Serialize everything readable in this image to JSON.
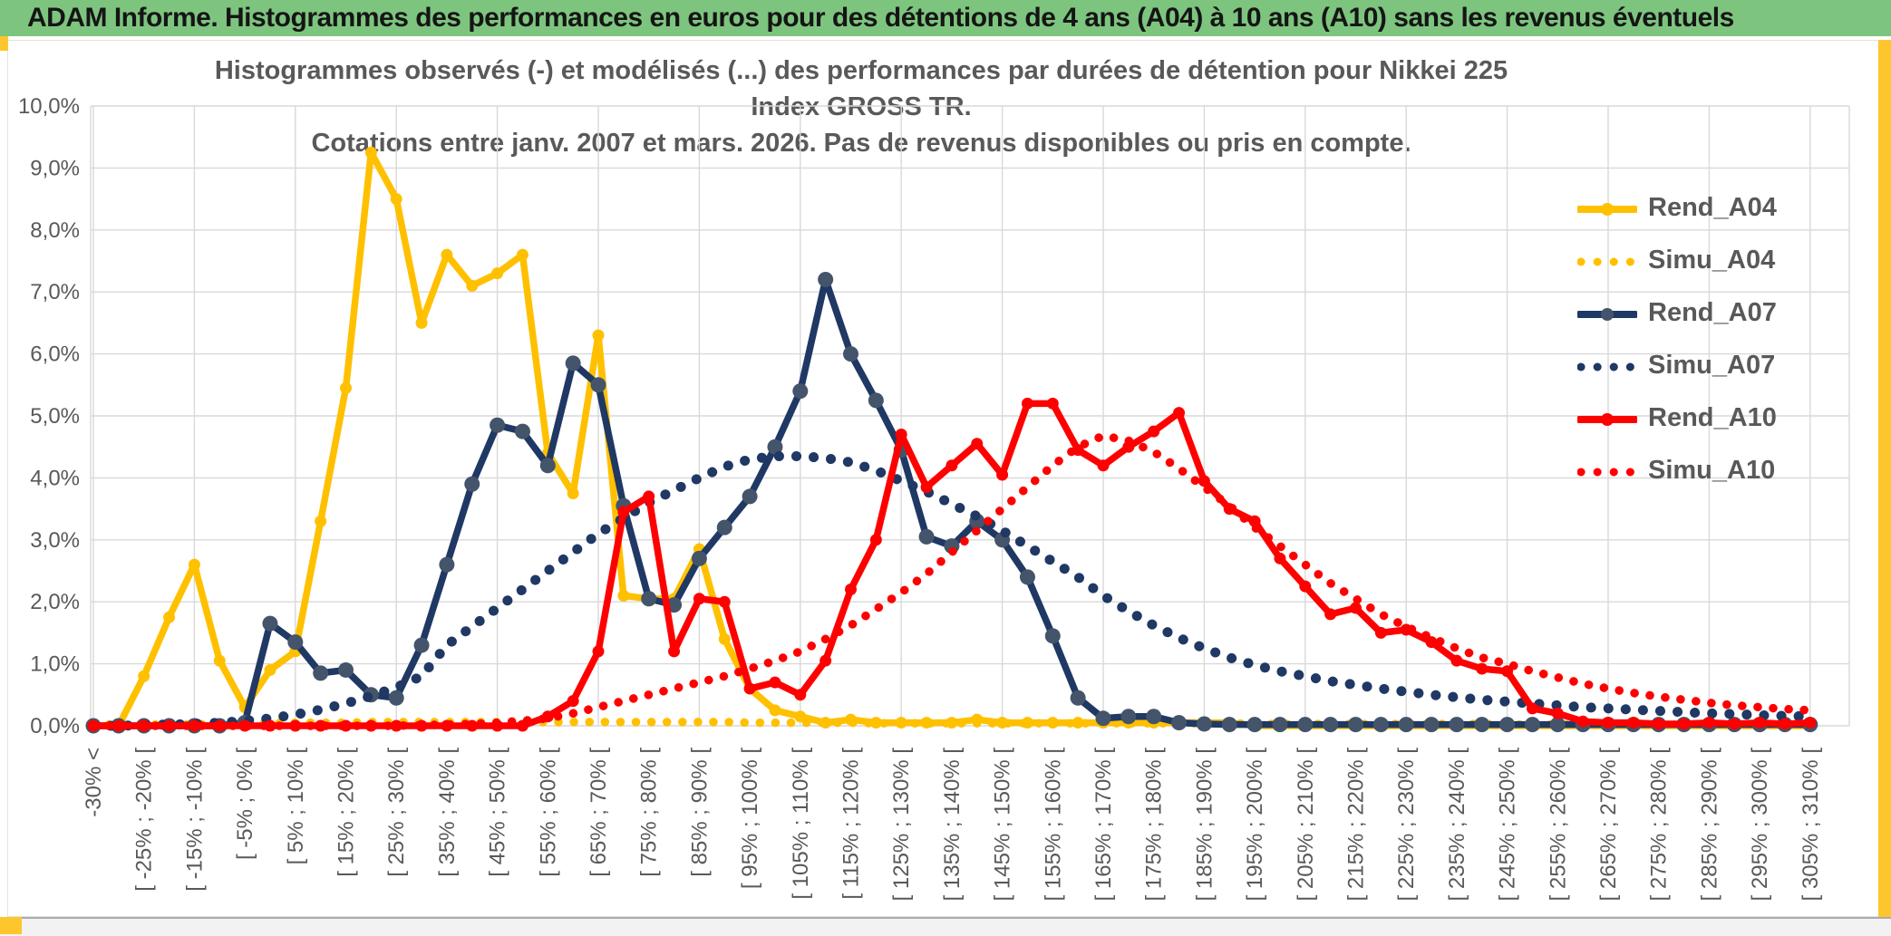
{
  "header": {
    "title": "ADAM Informe. Histogrammes des performances en euros pour des détentions de 4 ans (A04) à 10 ans (A10) sans les revenus éventuels"
  },
  "chart_data": {
    "type": "line",
    "title_line1": "Histogrammes observés (-) et modélisés (...) des performances par durées de détention pour Nikkei 225 Index GROSS TR.",
    "title_line2": "Cotations entre janv. 2007 et mars. 2026. Pas de revenus disponibles ou pris en compte.",
    "ylabel": "",
    "xlabel": "",
    "ylim": [
      0,
      10
    ],
    "y_tick_labels": [
      "10,0%",
      "9,0%",
      "8,0%",
      "7,0%",
      "6,0%",
      "5,0%",
      "4,0%",
      "3,0%",
      "2,0%",
      "1,0%",
      "0,0%"
    ],
    "n_bins": 69,
    "bins_per_tick_label": 2,
    "x_tick_labels": [
      "-30% <",
      "[ -25% ; -20% [",
      "[ -15% ; -10% [",
      "[ -5% ; 0% [",
      "[ 5% ; 10% [",
      "[ 15% ; 20% [",
      "[ 25% ; 30% [",
      "[ 35% ; 40% [",
      "[ 45% ; 50% [",
      "[ 55% ; 60% [",
      "[ 65% ; 70% [",
      "[ 75% ; 80% [",
      "[ 85% ; 90% [",
      "[ 95% ; 100% [",
      "[ 105% ; 110% [",
      "[ 115% ; 120% [",
      "[ 125% ; 130% [",
      "[ 135% ; 140% [",
      "[ 145% ; 150% [",
      "[ 155% ; 160% [",
      "[ 165% ; 170% [",
      "[ 175% ; 180% [",
      "[ 185% ; 190% [",
      "[ 195% ; 200% [",
      "[ 205% ; 210% [",
      "[ 215% ; 220% [",
      "[ 225% ; 230% [",
      "[ 235% ; 240% [",
      "[ 245% ; 250% [",
      "[ 255% ; 260% [",
      "[ 265% ; 270% [",
      "[ 275% ; 280% [",
      "[ 285% ; 290% [",
      "[ 295% ; 300% [",
      "[ 305% ; 310% ["
    ],
    "grid_color": "#d9d9d9",
    "legend_position": "right",
    "series": [
      {
        "name": "Rend_A04",
        "style": "solid",
        "color": "#FFC000",
        "marker_color": "#FFC000",
        "values": [
          0,
          0,
          0.8,
          1.75,
          2.6,
          1.05,
          0.3,
          0.9,
          1.2,
          3.3,
          5.45,
          9.25,
          8.5,
          6.5,
          7.6,
          7.1,
          7.3,
          7.6,
          4.4,
          3.75,
          6.3,
          2.1,
          2.05,
          2.05,
          2.85,
          1.4,
          0.6,
          0.25,
          0.15,
          0.05,
          0.1,
          0.05,
          0.05,
          0.05,
          0.05,
          0.1,
          0.05,
          0.05,
          0.05,
          0.05,
          0.05,
          0.05,
          0.05,
          0.05,
          0.05,
          0.05,
          0,
          0,
          0,
          0,
          0,
          0,
          0,
          0,
          0,
          0,
          0,
          0,
          0,
          0,
          0,
          0,
          0,
          0,
          0,
          0,
          0,
          0,
          0
        ]
      },
      {
        "name": "Simu_A04",
        "style": "dotted",
        "color": "#FFC000",
        "marker_color": "#FFC000",
        "values": [
          0.02,
          0.02,
          0.02,
          0.02,
          0.02,
          0.03,
          0.04,
          0.04,
          0.05,
          0.05,
          0.05,
          0.06,
          0.06,
          0.06,
          0.06,
          0.06,
          0.06,
          0.06,
          0.06,
          0.06,
          0.06,
          0.06,
          0.06,
          0.06,
          0.06,
          0.06,
          0.05,
          0.05,
          0.05,
          0.05,
          0.05,
          0.04,
          0.04,
          0.04,
          0.04,
          0.04,
          0.04,
          0.04,
          0.04,
          0.04,
          0.04,
          0.04,
          0.04,
          0.04,
          0.04,
          0.04,
          0.03,
          0.03,
          0.03,
          0.03,
          0.03,
          0.03,
          0.03,
          0.03,
          0.03,
          0.03,
          0.02,
          0.02,
          0.02,
          0.02,
          0.02,
          0.02,
          0.02,
          0.02,
          0.02,
          0.02,
          0.02,
          0.02,
          0.02
        ]
      },
      {
        "name": "Rend_A07",
        "style": "solid",
        "color": "#1F3864",
        "marker_color": "#44546A",
        "values": [
          0,
          0,
          0,
          0,
          0,
          0,
          0.05,
          1.65,
          1.35,
          0.85,
          0.9,
          0.5,
          0.45,
          1.3,
          2.6,
          3.9,
          4.85,
          4.75,
          4.2,
          5.85,
          5.5,
          3.55,
          2.05,
          1.95,
          2.7,
          3.2,
          3.7,
          4.5,
          5.4,
          7.2,
          6.0,
          5.25,
          4.45,
          3.05,
          2.9,
          3.3,
          3.0,
          2.4,
          1.45,
          0.45,
          0.12,
          0.15,
          0.15,
          0.05,
          0.03,
          0.02,
          0.02,
          0.02,
          0.02,
          0.02,
          0.02,
          0.02,
          0.02,
          0.02,
          0.02,
          0.02,
          0.02,
          0.02,
          0.02,
          0.02,
          0.02,
          0.02,
          0.02,
          0.02,
          0.02,
          0.02,
          0.02,
          0.02,
          0.02
        ]
      },
      {
        "name": "Simu_A07",
        "style": "dotted",
        "color": "#1F3864",
        "marker_color": "#1F3864",
        "values": [
          0,
          0,
          0.01,
          0.02,
          0.03,
          0.05,
          0.08,
          0.12,
          0.18,
          0.26,
          0.36,
          0.48,
          0.62,
          0.8,
          1.3,
          1.6,
          1.9,
          2.2,
          2.5,
          2.8,
          3.1,
          3.35,
          3.6,
          3.8,
          4.0,
          4.18,
          4.3,
          4.35,
          4.35,
          4.32,
          4.25,
          4.12,
          3.95,
          3.78,
          3.58,
          3.38,
          3.15,
          2.9,
          2.65,
          2.4,
          2.1,
          1.85,
          1.62,
          1.42,
          1.25,
          1.1,
          0.98,
          0.88,
          0.8,
          0.72,
          0.66,
          0.6,
          0.55,
          0.5,
          0.46,
          0.42,
          0.39,
          0.36,
          0.33,
          0.3,
          0.28,
          0.26,
          0.24,
          0.22,
          0.2,
          0.19,
          0.17,
          0.16,
          0.15
        ]
      },
      {
        "name": "Rend_A10",
        "style": "solid",
        "color": "#FF0000",
        "marker_color": "#FF0000",
        "values": [
          0,
          0,
          0,
          0,
          0,
          0,
          0,
          0,
          0,
          0,
          0,
          0,
          0,
          0,
          0,
          0,
          0,
          0,
          0.15,
          0.4,
          1.2,
          3.45,
          3.7,
          1.2,
          2.05,
          2.0,
          0.6,
          0.7,
          0.5,
          1.05,
          2.2,
          3.0,
          4.7,
          3.85,
          4.2,
          4.55,
          4.05,
          5.2,
          5.2,
          4.45,
          4.2,
          4.5,
          4.75,
          5.05,
          3.95,
          3.5,
          3.3,
          2.7,
          2.25,
          1.8,
          1.9,
          1.5,
          1.55,
          1.35,
          1.05,
          0.92,
          0.88,
          0.28,
          0.2,
          0.07,
          0.05,
          0.05,
          0.03,
          0.03,
          0.05,
          0.03,
          0.05,
          0.03,
          0.05
        ]
      },
      {
        "name": "Simu_A10",
        "style": "dotted",
        "color": "#FF0000",
        "marker_color": "#FF0000",
        "values": [
          0,
          0,
          0,
          0,
          0,
          0,
          0,
          0,
          0,
          0,
          0,
          0,
          0,
          0.01,
          0.02,
          0.03,
          0.05,
          0.08,
          0.12,
          0.2,
          0.3,
          0.4,
          0.5,
          0.6,
          0.7,
          0.8,
          0.92,
          1.05,
          1.2,
          1.4,
          1.62,
          1.88,
          2.15,
          2.45,
          2.8,
          3.15,
          3.5,
          3.85,
          4.2,
          4.5,
          4.68,
          4.6,
          4.42,
          4.15,
          3.85,
          3.55,
          3.2,
          2.9,
          2.6,
          2.3,
          2.05,
          1.8,
          1.6,
          1.42,
          1.25,
          1.1,
          1.0,
          0.88,
          0.78,
          0.68,
          0.6,
          0.53,
          0.47,
          0.42,
          0.37,
          0.33,
          0.3,
          0.27,
          0.25
        ]
      }
    ],
    "legend": [
      "Rend_A04",
      "Simu_A04",
      "Rend_A07",
      "Simu_A07",
      "Rend_A10",
      "Simu_A10"
    ],
    "text_color": "#595959"
  },
  "layout_note_colors": {
    "header_green": "#7dc57e",
    "accent_gold": "#fdc62c",
    "gold": "#FFC000",
    "navy": "#1F3864",
    "navy_marker": "#44546A",
    "red": "#FF0000",
    "grid": "#d9d9d9",
    "text": "#595959"
  }
}
